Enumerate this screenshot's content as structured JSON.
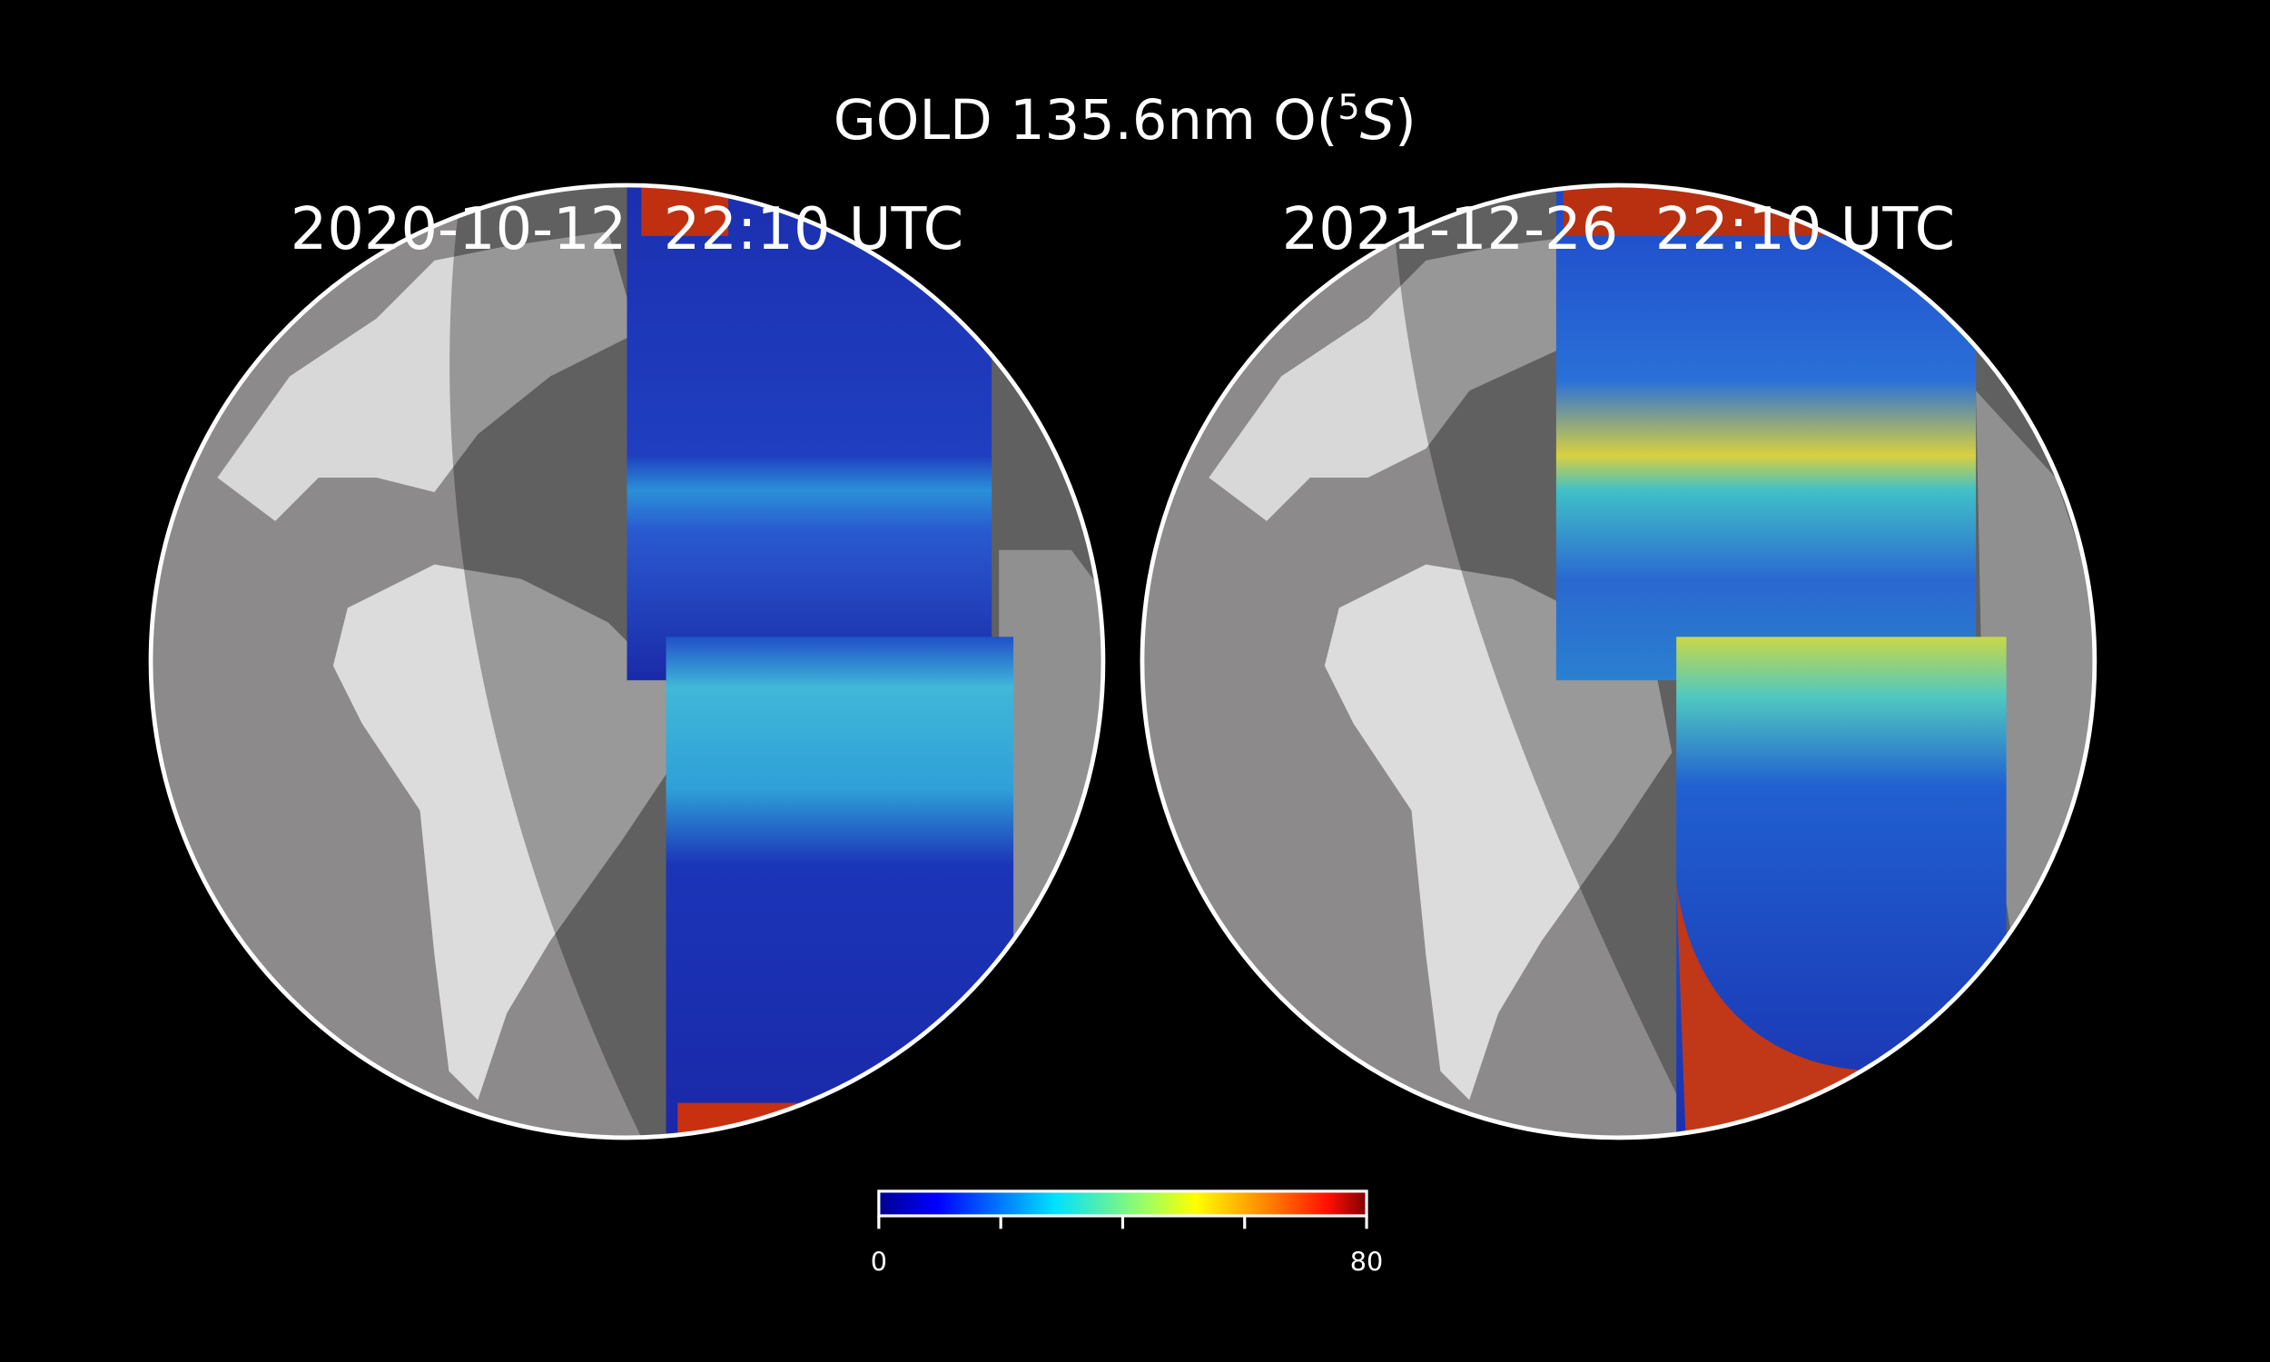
{
  "title": {
    "text": "GOLD 135.6nm O(",
    "superscript": "5",
    "italic": "S",
    "close": ")"
  },
  "panels": [
    {
      "label": "2020-10-12  22:10 UTC"
    },
    {
      "label": "2021-12-26  22:10 UTC"
    }
  ],
  "colorbar": {
    "range": [
      0,
      80
    ],
    "ticks": [
      0,
      80
    ],
    "minor_ticks": [
      20,
      40,
      60
    ]
  }
}
